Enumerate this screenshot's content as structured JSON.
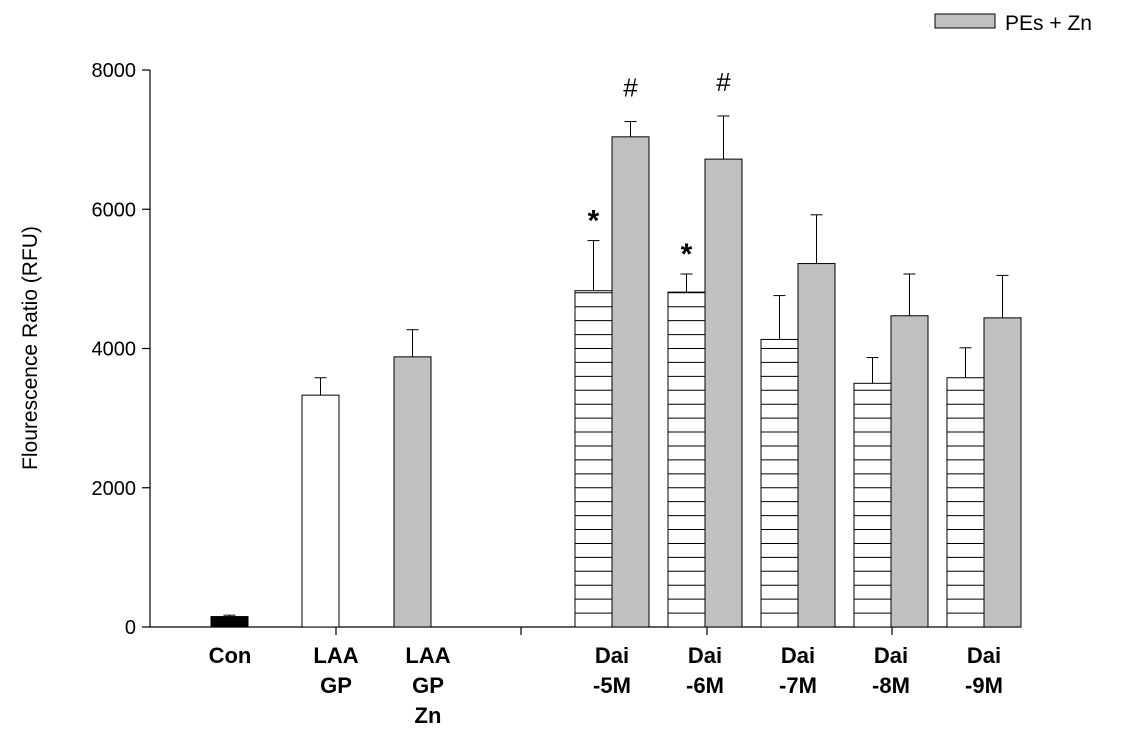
{
  "chart_data": {
    "type": "bar",
    "ylabel": "Flourescence Ratio (RFU)",
    "xlabel": "",
    "ylim": [
      0,
      8000
    ],
    "yticks": [
      0,
      2000,
      4000,
      6000,
      8000
    ],
    "legend": {
      "placement": "top-right",
      "entries": [
        {
          "label": "PEs + Zn",
          "color": "#c0c0c0"
        }
      ]
    },
    "categories": [
      {
        "lines": [
          "Con"
        ]
      },
      {
        "lines": [
          "LAA",
          "GP"
        ]
      },
      {
        "lines": [
          "LAA",
          "GP",
          "Zn"
        ]
      },
      {
        "lines": [
          "Dai",
          "-5M"
        ]
      },
      {
        "lines": [
          "Dai",
          "-6M"
        ]
      },
      {
        "lines": [
          "Dai",
          "-7M"
        ]
      },
      {
        "lines": [
          "Dai",
          "-8M"
        ]
      },
      {
        "lines": [
          "Dai",
          "-9M"
        ]
      }
    ],
    "bars": [
      {
        "category": 0,
        "style": "solid-black",
        "value": 150,
        "error": 20,
        "annotation": ""
      },
      {
        "category": 1,
        "style": "white",
        "value": 3330,
        "error": 250,
        "annotation": ""
      },
      {
        "category": 2,
        "style": "gray",
        "value": 3880,
        "error": 390,
        "annotation": ""
      },
      {
        "category": 3,
        "style": "hatched",
        "value": 4830,
        "error": 720,
        "annotation": "*"
      },
      {
        "category": 3,
        "style": "gray",
        "value": 7040,
        "error": 220,
        "annotation": "#"
      },
      {
        "category": 4,
        "style": "hatched",
        "value": 4810,
        "error": 260,
        "annotation": "*"
      },
      {
        "category": 4,
        "style": "gray",
        "value": 6720,
        "error": 620,
        "annotation": "#"
      },
      {
        "category": 5,
        "style": "hatched",
        "value": 4130,
        "error": 630,
        "annotation": ""
      },
      {
        "category": 5,
        "style": "gray",
        "value": 5220,
        "error": 700,
        "annotation": ""
      },
      {
        "category": 6,
        "style": "hatched",
        "value": 3500,
        "error": 370,
        "annotation": ""
      },
      {
        "category": 6,
        "style": "gray",
        "value": 4470,
        "error": 600,
        "annotation": ""
      },
      {
        "category": 7,
        "style": "hatched",
        "value": 3580,
        "error": 430,
        "annotation": ""
      },
      {
        "category": 7,
        "style": "gray",
        "value": 4440,
        "error": 610,
        "annotation": ""
      }
    ],
    "colors": {
      "solid-black": "#000000",
      "white": "#ffffff",
      "gray": "#c0c0c0",
      "hatched": "#ffffff"
    }
  }
}
